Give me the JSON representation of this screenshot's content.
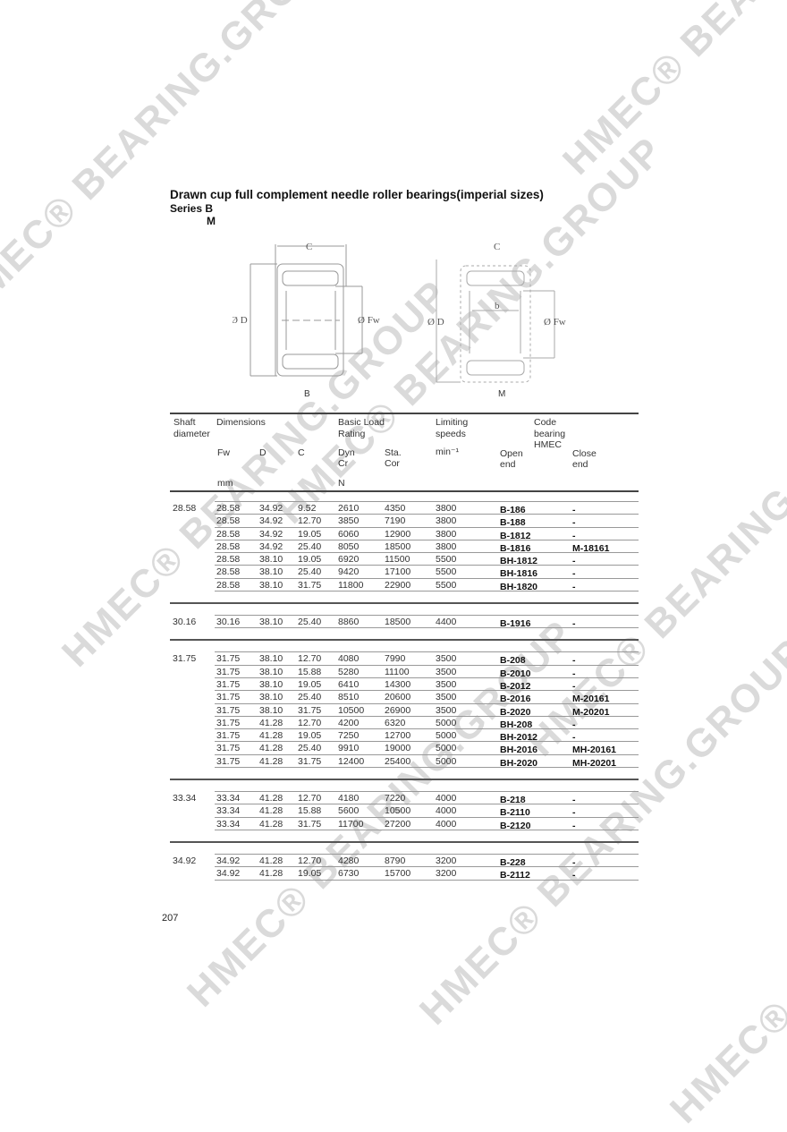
{
  "watermark": "HMEC® BEARING.GROUP",
  "title": "Drawn cup full complement needle roller bearings(imperial sizes)",
  "series": "Series B",
  "series_sub": "M",
  "diagram": {
    "left": {
      "c": "C",
      "d": "Ø D",
      "fw": "Ø Fw",
      "caption": "B"
    },
    "right": {
      "c": "C",
      "b": "b",
      "d": "Ø D",
      "fw": "Ø Fw",
      "caption": "M"
    }
  },
  "table": {
    "headers": {
      "shaft": "Shaft",
      "shaft2": "diameter",
      "dimensions": "Dimensions",
      "basic": "Basic Load",
      "basic2": "Rating",
      "limiting": "Limiting",
      "limiting2": "speeds",
      "code": "Code",
      "code2": "bearing",
      "code3": "HMEC",
      "fw": "Fw",
      "d": "D",
      "c": "C",
      "dyn": "Dyn",
      "dyn2": "Cr",
      "sta": "Sta.",
      "sta2": "Cor",
      "speed_unit": "min⁻¹",
      "open": "Open",
      "open2": "end",
      "close": "Close",
      "close2": "end",
      "mm": "mm",
      "n": "N"
    },
    "groups": [
      {
        "shaft": "28.58",
        "rows": [
          [
            "28.58",
            "34.92",
            "9.52",
            "2610",
            "4350",
            "3800",
            "B-186",
            "-"
          ],
          [
            "28.58",
            "34.92",
            "12.70",
            "3850",
            "7190",
            "3800",
            "B-188",
            "-"
          ],
          [
            "28.58",
            "34.92",
            "19.05",
            "6060",
            "12900",
            "3800",
            "B-1812",
            "-"
          ],
          [
            "28.58",
            "34.92",
            "25.40",
            "8050",
            "18500",
            "3800",
            "B-1816",
            "M-18161"
          ],
          [
            "28.58",
            "38.10",
            "19.05",
            "6920",
            "11500",
            "5500",
            "BH-1812",
            "-"
          ],
          [
            "28.58",
            "38.10",
            "25.40",
            "9420",
            "17100",
            "5500",
            "BH-1816",
            "-"
          ],
          [
            "28.58",
            "38.10",
            "31.75",
            "11800",
            "22900",
            "5500",
            "BH-1820",
            "-"
          ]
        ]
      },
      {
        "shaft": "30.16",
        "rows": [
          [
            "30.16",
            "38.10",
            "25.40",
            "8860",
            "18500",
            "4400",
            "B-1916",
            "-"
          ]
        ]
      },
      {
        "shaft": "31.75",
        "rows": [
          [
            "31.75",
            "38.10",
            "12.70",
            "4080",
            "7990",
            "3500",
            "B-208",
            "-"
          ],
          [
            "31.75",
            "38.10",
            "15.88",
            "5280",
            "11100",
            "3500",
            "B-2010",
            "-"
          ],
          [
            "31.75",
            "38.10",
            "19.05",
            "6410",
            "14300",
            "3500",
            "B-2012",
            "-"
          ],
          [
            "31.75",
            "38.10",
            "25.40",
            "8510",
            "20600",
            "3500",
            "B-2016",
            "M-20161"
          ],
          [
            "31.75",
            "38.10",
            "31.75",
            "10500",
            "26900",
            "3500",
            "B-2020",
            "M-20201"
          ],
          [
            "31.75",
            "41.28",
            "12.70",
            "4200",
            "6320",
            "5000",
            "BH-208",
            "-"
          ],
          [
            "31.75",
            "41.28",
            "19.05",
            "7250",
            "12700",
            "5000",
            "BH-2012",
            "-"
          ],
          [
            "31.75",
            "41.28",
            "25.40",
            "9910",
            "19000",
            "5000",
            "BH-2016",
            "MH-20161"
          ],
          [
            "31.75",
            "41.28",
            "31.75",
            "12400",
            "25400",
            "5000",
            "BH-2020",
            "MH-20201"
          ]
        ]
      },
      {
        "shaft": "33.34",
        "rows": [
          [
            "33.34",
            "41.28",
            "12.70",
            "4180",
            "7220",
            "4000",
            "B-218",
            "-"
          ],
          [
            "33.34",
            "41.28",
            "15.88",
            "5600",
            "10500",
            "4000",
            "B-2110",
            "-"
          ],
          [
            "33.34",
            "41.28",
            "31.75",
            "11700",
            "27200",
            "4000",
            "B-2120",
            "-"
          ]
        ]
      },
      {
        "shaft": "34.92",
        "rows": [
          [
            "34.92",
            "41.28",
            "12.70",
            "4280",
            "8790",
            "3200",
            "B-228",
            "-"
          ],
          [
            "34.92",
            "41.28",
            "19.05",
            "6730",
            "15700",
            "3200",
            "B-2112",
            "-"
          ]
        ]
      }
    ]
  },
  "page_number": "207"
}
